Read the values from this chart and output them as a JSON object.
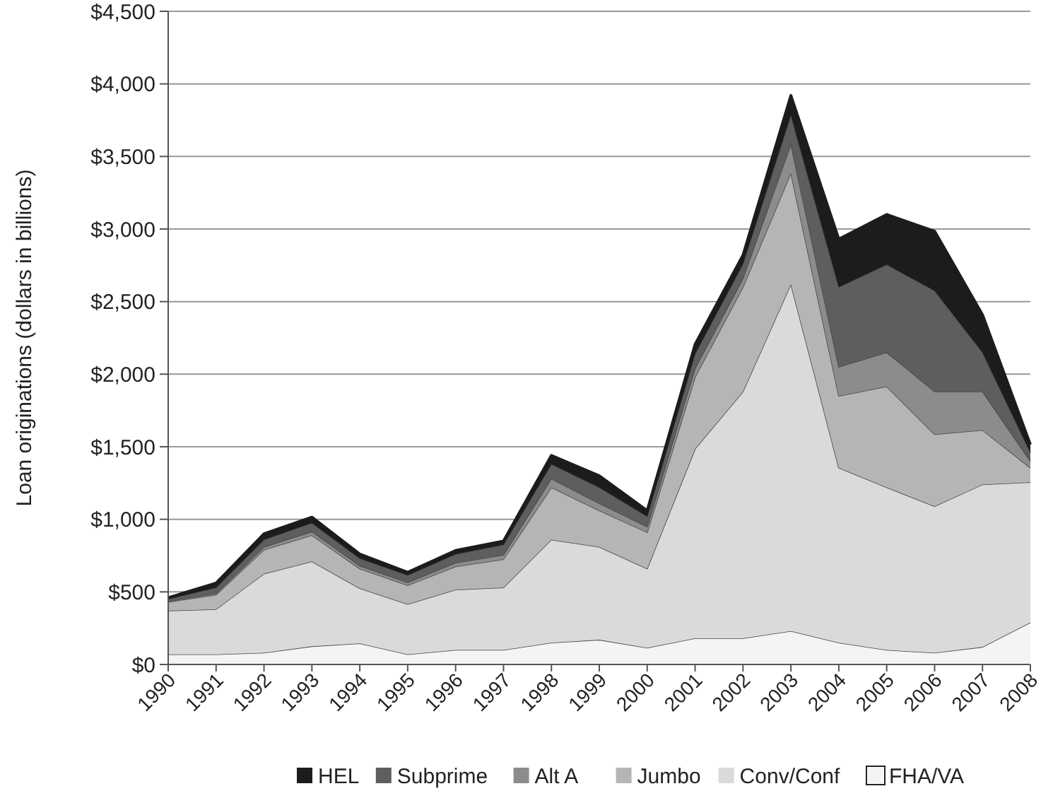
{
  "chart_data": {
    "type": "area",
    "stacked": true,
    "ylabel": "Loan originations (dollars in billions)",
    "categories": [
      "1990",
      "1991",
      "1992",
      "1993",
      "1994",
      "1995",
      "1996",
      "1997",
      "1998",
      "1999",
      "2000",
      "2001",
      "2002",
      "2003",
      "2004",
      "2005",
      "2006",
      "2007",
      "2008"
    ],
    "series": [
      {
        "name": "FHA/VA",
        "color": "#f4f4f4",
        "values": [
          70,
          70,
          80,
          125,
          145,
          70,
          100,
          100,
          150,
          170,
          115,
          180,
          180,
          230,
          150,
          100,
          80,
          120,
          290
        ]
      },
      {
        "name": "Conv/Conf",
        "color": "#dadada",
        "values": [
          300,
          310,
          545,
          585,
          380,
          345,
          415,
          430,
          710,
          640,
          545,
          1305,
          1700,
          2390,
          1205,
          1120,
          1010,
          1120,
          965
        ]
      },
      {
        "name": "Jumbo",
        "color": "#b5b5b5",
        "values": [
          60,
          100,
          165,
          180,
          135,
          130,
          160,
          195,
          360,
          250,
          250,
          495,
          720,
          765,
          495,
          695,
          495,
          375,
          100
        ]
      },
      {
        "name": "Alt A",
        "color": "#8c8c8c",
        "values": [
          5,
          10,
          20,
          25,
          20,
          20,
          25,
          30,
          60,
          50,
          40,
          60,
          60,
          200,
          200,
          235,
          295,
          265,
          45
        ]
      },
      {
        "name": "Subprime",
        "color": "#5e5e5e",
        "values": [
          15,
          40,
          50,
          60,
          50,
          50,
          60,
          70,
          100,
          110,
          70,
          100,
          100,
          200,
          550,
          605,
          695,
          270,
          60
        ]
      },
      {
        "name": "HEL",
        "color": "#1c1c1c",
        "values": [
          10,
          30,
          40,
          40,
          30,
          20,
          25,
          25,
          60,
          80,
          40,
          65,
          60,
          135,
          330,
          345,
          410,
          260,
          55
        ]
      }
    ],
    "ylim": [
      0,
      4500
    ],
    "yticks": [
      {
        "value": 0,
        "label": "$0"
      },
      {
        "value": 500,
        "label": "$500"
      },
      {
        "value": 1000,
        "label": "$1,000"
      },
      {
        "value": 1500,
        "label": "$1,500"
      },
      {
        "value": 2000,
        "label": "$2,000"
      },
      {
        "value": 2500,
        "label": "$2,500"
      },
      {
        "value": 3000,
        "label": "$3,000"
      },
      {
        "value": 3500,
        "label": "$3,500"
      },
      {
        "value": 4000,
        "label": "$4,000"
      },
      {
        "value": 4500,
        "label": "$4,500"
      }
    ],
    "grid": "y",
    "legend": "bottom"
  }
}
